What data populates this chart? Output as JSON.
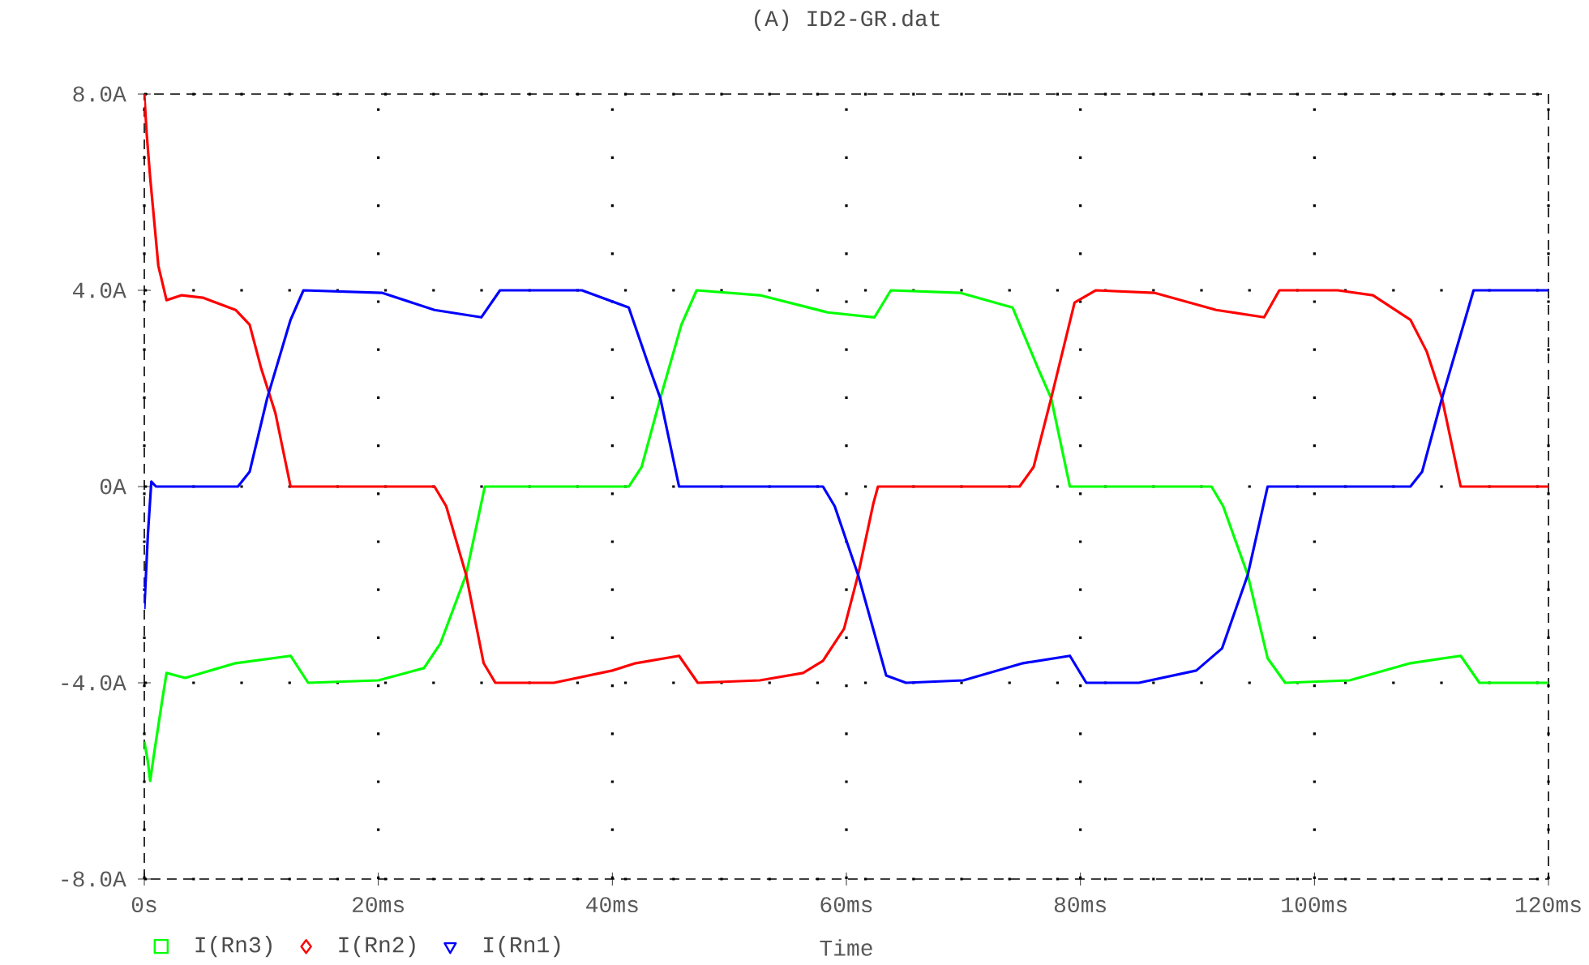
{
  "chart_data": {
    "type": "line",
    "title": "(A) ID2-GR.dat",
    "xlabel": "Time",
    "xlim": [
      0,
      120
    ],
    "ylim": [
      -8,
      8
    ],
    "xticks": [
      {
        "value": 0,
        "label": "0s"
      },
      {
        "value": 20,
        "label": "20ms"
      },
      {
        "value": 40,
        "label": "40ms"
      },
      {
        "value": 60,
        "label": "60ms"
      },
      {
        "value": 80,
        "label": "80ms"
      },
      {
        "value": 100,
        "label": "100ms"
      },
      {
        "value": 120,
        "label": "120ms"
      }
    ],
    "yticks": [
      {
        "value": -8,
        "label": "-8.0A"
      },
      {
        "value": -4,
        "label": "-4.0A"
      },
      {
        "value": 0,
        "label": "0A"
      },
      {
        "value": 4,
        "label": "4.0A"
      },
      {
        "value": 8,
        "label": "8.0A"
      }
    ],
    "grid": true,
    "legend": "bottom",
    "series": [
      {
        "name": "I(Rn3)",
        "color": "#00ff00",
        "x": [
          0,
          0.3,
          0.5,
          0.8,
          1.5,
          1.9,
          3.5,
          7.8,
          12.5,
          14,
          20,
          23.9,
          25.3,
          27.5,
          29.1,
          41.4,
          42.5,
          44.1,
          45.9,
          47.2,
          52.6,
          58.4,
          62.4,
          63.8,
          69.7,
          74.2,
          76.4,
          77.5,
          79.1,
          91.2,
          92.2,
          94.3,
          96,
          97.5,
          103,
          108.2,
          112.5,
          114.1,
          120
        ],
        "values": [
          -5.2,
          -5.6,
          -6,
          -5.5,
          -4.4,
          -3.8,
          -3.9,
          -3.6,
          -3.45,
          -4,
          -3.95,
          -3.7,
          -3.2,
          -1.8,
          0,
          0,
          0.4,
          1.8,
          3.3,
          4,
          3.9,
          3.55,
          3.45,
          4,
          3.95,
          3.65,
          2.4,
          1.8,
          0,
          0,
          -0.4,
          -1.8,
          -3.5,
          -4,
          -3.95,
          -3.6,
          -3.45,
          -4,
          -4
        ]
      },
      {
        "name": "I(Rn2)",
        "color": "#ff0000",
        "x": [
          0,
          0.2,
          0.5,
          1.2,
          1.9,
          3.2,
          5,
          7.8,
          9,
          10,
          11.2,
          12.5,
          24.8,
          25.8,
          27.5,
          29,
          30,
          35,
          40,
          42,
          45.7,
          47.3,
          52.6,
          56.3,
          58,
          59.8,
          61,
          62.3,
          62.7,
          74.8,
          76,
          77.5,
          79.5,
          81.3,
          86.3,
          91.6,
          95.7,
          97,
          102,
          105,
          108.2,
          109.6,
          110.9,
          112.5,
          120
        ],
        "values": [
          8,
          7.2,
          6.3,
          4.5,
          3.8,
          3.9,
          3.85,
          3.6,
          3.3,
          2.4,
          1.5,
          0,
          0,
          -0.4,
          -1.8,
          -3.6,
          -4,
          -4,
          -3.75,
          -3.6,
          -3.45,
          -4,
          -3.95,
          -3.8,
          -3.55,
          -2.9,
          -1.8,
          -0.35,
          0,
          0,
          0.4,
          1.8,
          3.75,
          4,
          3.95,
          3.6,
          3.45,
          4,
          4,
          3.9,
          3.4,
          2.75,
          1.8,
          0,
          0
        ]
      },
      {
        "name": "I(Rn1)",
        "color": "#0000ff",
        "x": [
          0,
          0.3,
          0.6,
          1,
          8,
          9,
          10.5,
          12.5,
          13.6,
          20.3,
          24.8,
          28.8,
          30.4,
          37.4,
          41.4,
          43.2,
          44.1,
          45.7,
          58,
          59,
          61,
          63.4,
          65.1,
          70,
          75.1,
          79.1,
          80.5,
          85,
          89.9,
          92.1,
          94.3,
          96,
          108.2,
          109.2,
          110.9,
          113.6,
          120
        ],
        "values": [
          -2.5,
          -1,
          0.1,
          0,
          0,
          0.3,
          1.8,
          3.4,
          4,
          3.95,
          3.6,
          3.45,
          4,
          4,
          3.65,
          2.4,
          1.8,
          0,
          0,
          -0.4,
          -1.8,
          -3.85,
          -4,
          -3.95,
          -3.6,
          -3.45,
          -4,
          -4,
          -3.75,
          -3.3,
          -1.8,
          0,
          0,
          0.3,
          1.8,
          4,
          4
        ]
      }
    ]
  }
}
